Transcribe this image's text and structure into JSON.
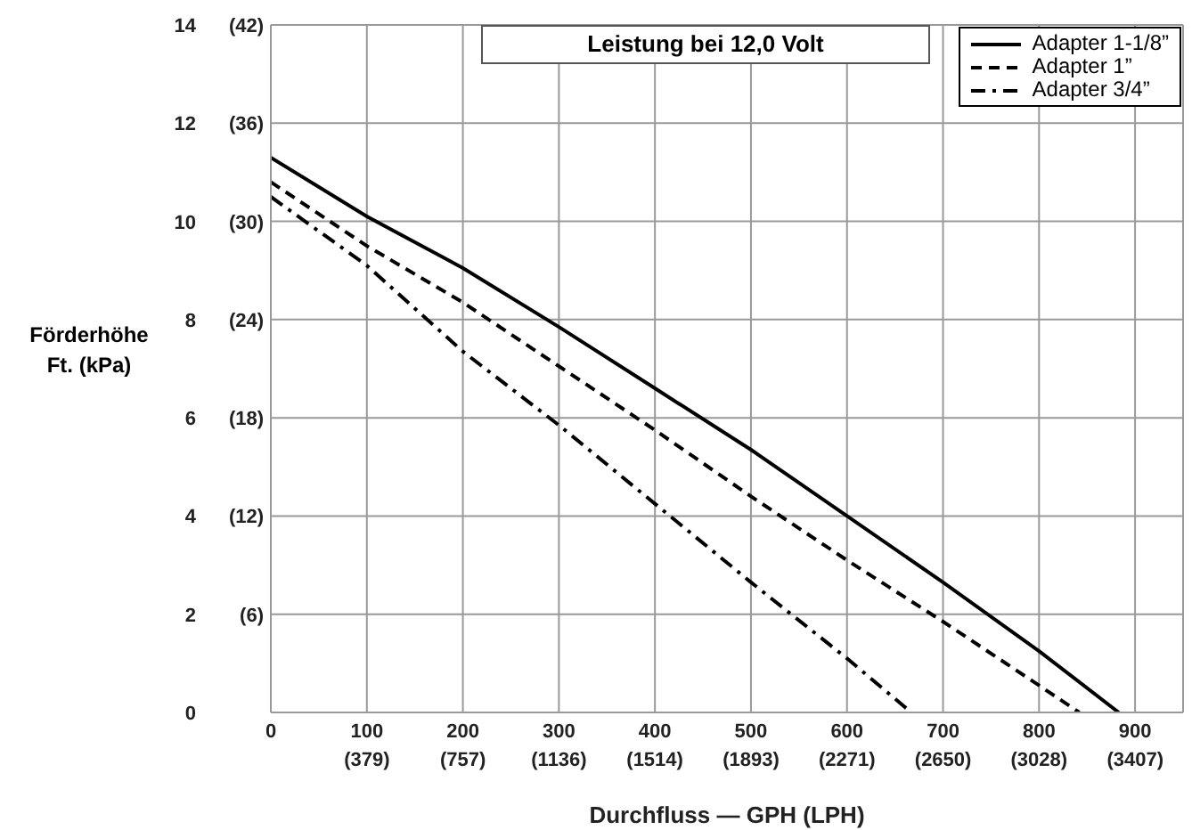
{
  "chart_data": {
    "type": "line",
    "title": "Leistung bei 12,0 Volt",
    "xlabel": "Durchfluss — GPH (LPH)",
    "ylabel": "Förderhöhe\nFt. (kPa)",
    "xlim": [
      0,
      950
    ],
    "xticks": [
      0,
      100,
      200,
      300,
      400,
      500,
      600,
      700,
      800,
      900
    ],
    "x2lim": [
      0,
      3596
    ],
    "x2ticks": [
      {
        "value": 379,
        "label": "(379)"
      },
      {
        "value": 757,
        "label": "(757)"
      },
      {
        "value": 1136,
        "label": "(1136)"
      },
      {
        "value": 1514,
        "label": "(1514)"
      },
      {
        "value": 1893,
        "label": "(1893)"
      },
      {
        "value": 2271,
        "label": "(2271)"
      },
      {
        "value": 2650,
        "label": "(2650)"
      },
      {
        "value": 3028,
        "label": "(3028)"
      },
      {
        "value": 3407,
        "label": "(3407)"
      }
    ],
    "ylim": [
      0,
      14
    ],
    "yticks": [
      0,
      2,
      4,
      6,
      8,
      10,
      12,
      14
    ],
    "y2lim": [
      0,
      42
    ],
    "y2ticks": [
      {
        "value": 6,
        "label": "(6)"
      },
      {
        "value": 12,
        "label": "(12)"
      },
      {
        "value": 18,
        "label": "(18)"
      },
      {
        "value": 24,
        "label": "(24)"
      },
      {
        "value": 30,
        "label": "(30)"
      },
      {
        "value": 36,
        "label": "(36)"
      },
      {
        "value": 42,
        "label": "(42)"
      }
    ],
    "grid": true,
    "legend": "top right",
    "marker": "none",
    "series": [
      {
        "name": "Adapter 1-1/8”",
        "color": "#000000",
        "line_style": "solid",
        "x": [
          0,
          100,
          200,
          300,
          400,
          500,
          600,
          700,
          800,
          883
        ],
        "values": [
          11.3,
          10.1,
          9.05,
          7.85,
          6.6,
          5.35,
          4.0,
          2.65,
          1.25,
          0
        ]
      },
      {
        "name": "Adapter 1”",
        "color": "#000000",
        "line_style": "dashed",
        "x": [
          0,
          100,
          200,
          300,
          400,
          500,
          600,
          700,
          800,
          842
        ],
        "values": [
          10.8,
          9.5,
          8.35,
          7.05,
          5.75,
          4.4,
          3.1,
          1.85,
          0.55,
          0
        ]
      },
      {
        "name": "Adapter 3/4”",
        "color": "#000000",
        "line_style": "dashdot",
        "x": [
          0,
          100,
          200,
          300,
          400,
          500,
          600,
          667
        ],
        "values": [
          10.5,
          9.1,
          7.35,
          5.85,
          4.25,
          2.65,
          1.1,
          0
        ]
      }
    ]
  }
}
